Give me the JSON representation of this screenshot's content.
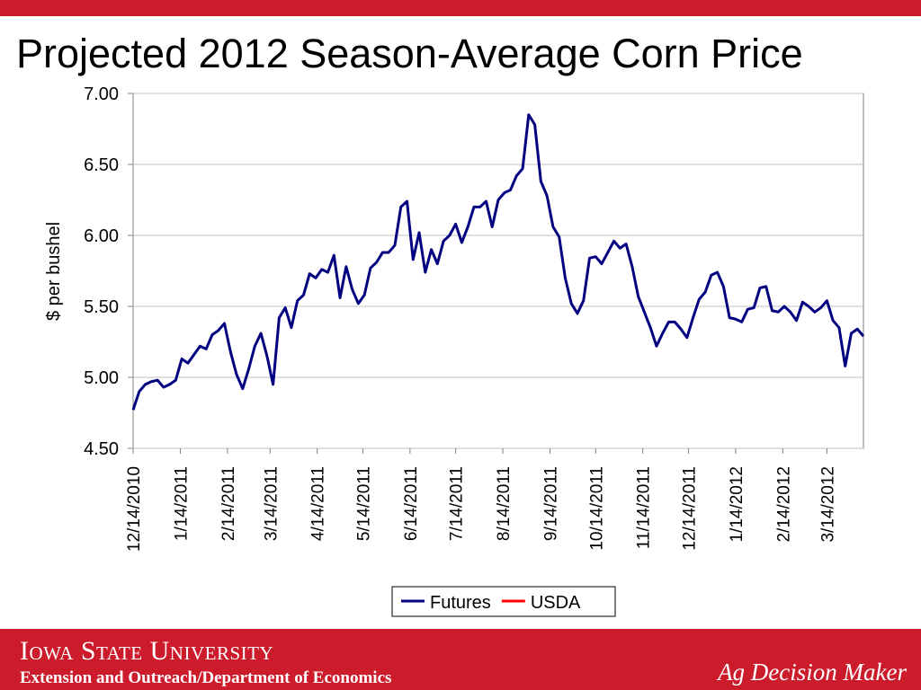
{
  "chart_data": {
    "type": "line",
    "title": "Projected 2012 Season-Average Corn Price",
    "y_label": "$ per bushel",
    "xlim": [
      "12/14/2010",
      "4/7/2012"
    ],
    "xticks": [
      "12/14/2010",
      "1/14/2011",
      "2/14/2011",
      "3/14/2011",
      "4/14/2011",
      "5/14/2011",
      "6/14/2011",
      "7/14/2011",
      "8/14/2011",
      "9/14/2011",
      "10/14/2011",
      "11/14/2011",
      "12/14/2011",
      "1/14/2012",
      "2/14/2012",
      "3/14/2012"
    ],
    "ylim": [
      4.5,
      7
    ],
    "yticks": [
      {
        "value": 4.5,
        "label": "4.50"
      },
      {
        "value": 5,
        "label": "5.00"
      },
      {
        "value": 5.5,
        "label": "5.50"
      },
      {
        "value": 6,
        "label": "6.00"
      },
      {
        "value": 6.5,
        "label": "6.50"
      },
      {
        "value": 7,
        "label": "7.00"
      }
    ],
    "grid": true,
    "legend": "bottom",
    "series": [
      {
        "name": "Futures",
        "color": "#000080",
        "x": [
          "12/14/2010",
          "12/18/2010",
          "12/22/2010",
          "12/26/2010",
          "12/30/2010",
          "1/3/2011",
          "1/7/2011",
          "1/11/2011",
          "1/15/2011",
          "1/19/2011",
          "1/23/2011",
          "1/27/2011",
          "1/31/2011",
          "2/4/2011",
          "2/8/2011",
          "2/12/2011",
          "2/16/2011",
          "2/20/2011",
          "2/24/2011",
          "2/28/2011",
          "3/4/2011",
          "3/8/2011",
          "3/12/2011",
          "3/16/2011",
          "3/20/2011",
          "3/24/2011",
          "3/28/2011",
          "4/1/2011",
          "4/5/2011",
          "4/9/2011",
          "4/13/2011",
          "4/17/2011",
          "4/21/2011",
          "4/25/2011",
          "4/29/2011",
          "5/3/2011",
          "5/7/2011",
          "5/11/2011",
          "5/15/2011",
          "5/19/2011",
          "5/23/2011",
          "5/27/2011",
          "5/31/2011",
          "6/4/2011",
          "6/8/2011",
          "6/12/2011",
          "6/16/2011",
          "6/20/2011",
          "6/24/2011",
          "6/28/2011",
          "7/2/2011",
          "7/6/2011",
          "7/10/2011",
          "7/14/2011",
          "7/18/2011",
          "7/22/2011",
          "7/26/2011",
          "7/30/2011",
          "8/3/2011",
          "8/7/2011",
          "8/11/2011",
          "8/15/2011",
          "8/19/2011",
          "8/23/2011",
          "8/27/2011",
          "8/31/2011",
          "9/4/2011",
          "9/8/2011",
          "9/12/2011",
          "9/16/2011",
          "9/20/2011",
          "9/24/2011",
          "9/28/2011",
          "10/2/2011",
          "10/6/2011",
          "10/10/2011",
          "10/14/2011",
          "10/18/2011",
          "10/22/2011",
          "10/26/2011",
          "10/30/2011",
          "11/3/2011",
          "11/7/2011",
          "11/11/2011",
          "11/15/2011",
          "11/19/2011",
          "11/23/2011",
          "11/27/2011",
          "12/1/2011",
          "12/5/2011",
          "12/9/2011",
          "12/13/2011",
          "12/17/2011",
          "12/21/2011",
          "12/25/2011",
          "12/29/2011",
          "1/2/2012",
          "1/6/2012",
          "1/10/2012",
          "1/14/2012",
          "1/18/2012",
          "1/22/2012",
          "1/26/2012",
          "1/30/2012",
          "2/3/2012",
          "2/7/2012",
          "2/11/2012",
          "2/15/2012",
          "2/19/2012",
          "2/23/2012",
          "2/27/2012",
          "3/2/2012",
          "3/6/2012",
          "3/10/2012",
          "3/14/2012",
          "3/18/2012",
          "3/22/2012",
          "3/26/2012",
          "3/30/2012",
          "4/3/2012",
          "4/7/2012"
        ],
        "values": [
          4.77,
          4.9,
          4.95,
          4.97,
          4.98,
          4.93,
          4.95,
          4.98,
          5.13,
          5.1,
          5.16,
          5.22,
          5.2,
          5.3,
          5.33,
          5.38,
          5.18,
          5.02,
          4.92,
          5.06,
          5.22,
          5.31,
          5.15,
          4.95,
          5.42,
          5.49,
          5.35,
          5.54,
          5.58,
          5.73,
          5.7,
          5.76,
          5.74,
          5.86,
          5.56,
          5.78,
          5.62,
          5.52,
          5.58,
          5.77,
          5.81,
          5.88,
          5.88,
          5.93,
          6.2,
          6.24,
          5.83,
          6.02,
          5.74,
          5.9,
          5.8,
          5.96,
          6.0,
          6.08,
          5.95,
          6.06,
          6.2,
          6.2,
          6.24,
          6.06,
          6.25,
          6.3,
          6.32,
          6.42,
          6.47,
          6.85,
          6.78,
          6.38,
          6.28,
          6.06,
          5.99,
          5.7,
          5.52,
          5.45,
          5.54,
          5.84,
          5.85,
          5.8,
          5.88,
          5.96,
          5.91,
          5.94,
          5.78,
          5.57,
          5.46,
          5.35,
          5.22,
          5.31,
          5.39,
          5.39,
          5.34,
          5.28,
          5.42,
          5.55,
          5.6,
          5.72,
          5.74,
          5.64,
          5.42,
          5.41,
          5.39,
          5.48,
          5.49,
          5.63,
          5.64,
          5.47,
          5.46,
          5.5,
          5.46,
          5.4,
          5.53,
          5.5,
          5.46,
          5.49,
          5.54,
          5.4,
          5.35,
          5.08,
          5.31,
          5.34,
          5.29
        ]
      },
      {
        "name": "USDA",
        "color": "#ff0000",
        "x": [],
        "values": []
      }
    ]
  },
  "footer": {
    "university": "Iowa State University",
    "department": "Extension and Outreach/Department of Economics",
    "brand": "Ag Decision Maker"
  }
}
